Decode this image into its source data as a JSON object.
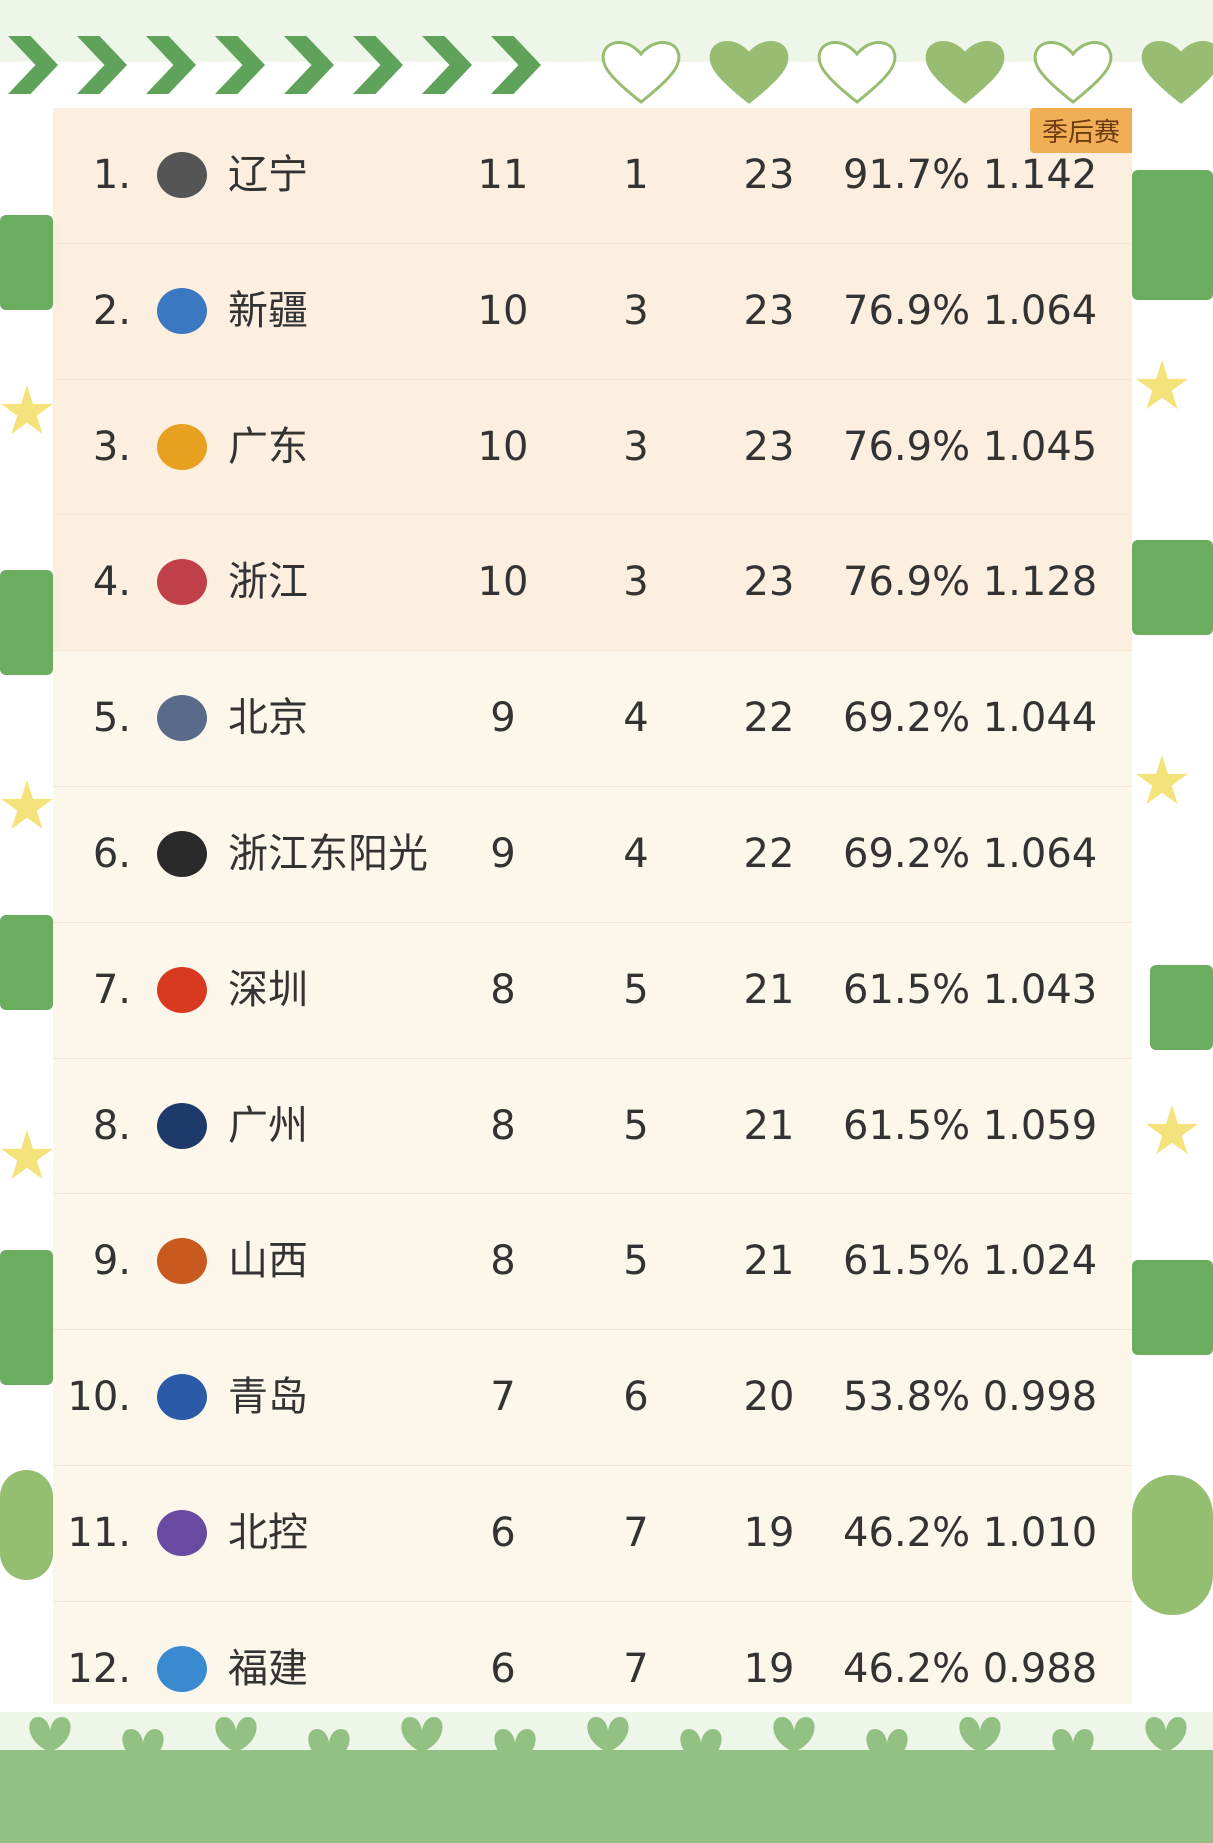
{
  "badge": "季后赛",
  "rows": [
    {
      "rank": "1.",
      "team": "辽宁",
      "w": "11",
      "l": "1",
      "pts": "23",
      "pct": "91.7%",
      "ratio": "1.142",
      "logo_color": "#555555"
    },
    {
      "rank": "2.",
      "team": "新疆",
      "w": "10",
      "l": "3",
      "pts": "23",
      "pct": "76.9%",
      "ratio": "1.064",
      "logo_color": "#3a78c2"
    },
    {
      "rank": "3.",
      "team": "广东",
      "w": "10",
      "l": "3",
      "pts": "23",
      "pct": "76.9%",
      "ratio": "1.045",
      "logo_color": "#e8a020"
    },
    {
      "rank": "4.",
      "team": "浙江",
      "w": "10",
      "l": "3",
      "pts": "23",
      "pct": "76.9%",
      "ratio": "1.128",
      "logo_color": "#c0404a"
    },
    {
      "rank": "5.",
      "team": "北京",
      "w": "9",
      "l": "4",
      "pts": "22",
      "pct": "69.2%",
      "ratio": "1.044",
      "logo_color": "#5a6a8a"
    },
    {
      "rank": "6.",
      "team": "浙江东阳光",
      "w": "9",
      "l": "4",
      "pts": "22",
      "pct": "69.2%",
      "ratio": "1.064",
      "logo_color": "#2a2a2a"
    },
    {
      "rank": "7.",
      "team": "深圳",
      "w": "8",
      "l": "5",
      "pts": "21",
      "pct": "61.5%",
      "ratio": "1.043",
      "logo_color": "#d83a20"
    },
    {
      "rank": "8.",
      "team": "广州",
      "w": "8",
      "l": "5",
      "pts": "21",
      "pct": "61.5%",
      "ratio": "1.059",
      "logo_color": "#1e3a6a"
    },
    {
      "rank": "9.",
      "team": "山西",
      "w": "8",
      "l": "5",
      "pts": "21",
      "pct": "61.5%",
      "ratio": "1.024",
      "logo_color": "#c85a20"
    },
    {
      "rank": "10.",
      "team": "青岛",
      "w": "7",
      "l": "6",
      "pts": "20",
      "pct": "53.8%",
      "ratio": "0.998",
      "logo_color": "#2a5aa8"
    },
    {
      "rank": "11.",
      "team": "北控",
      "w": "6",
      "l": "7",
      "pts": "19",
      "pct": "46.2%",
      "ratio": "1.010",
      "logo_color": "#6a4aa0"
    },
    {
      "rank": "12.",
      "team": "福建",
      "w": "6",
      "l": "7",
      "pts": "19",
      "pct": "46.2%",
      "ratio": "0.988",
      "logo_color": "#3a8ad0"
    }
  ]
}
